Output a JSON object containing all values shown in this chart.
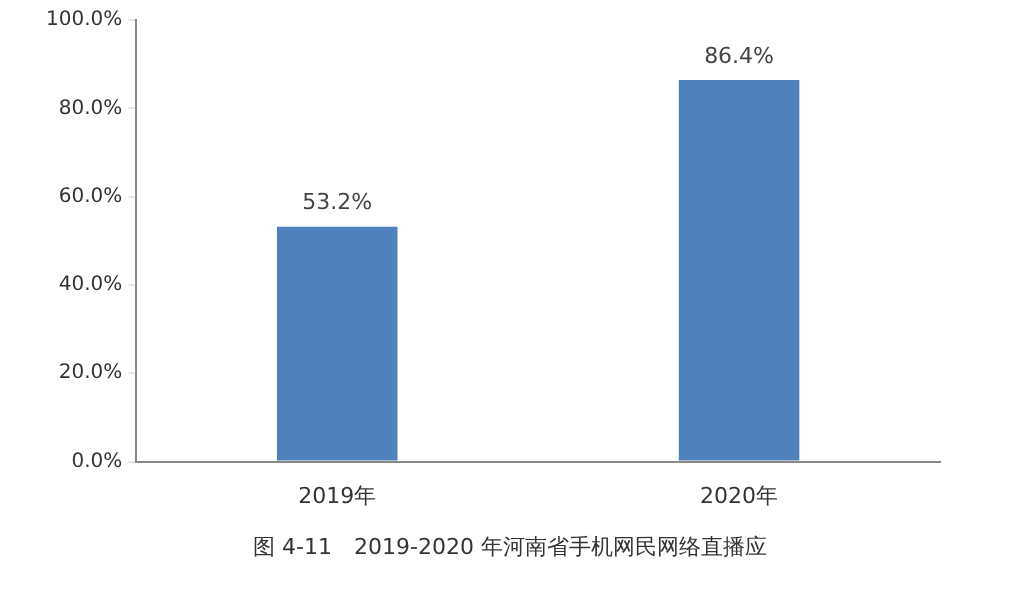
{
  "chart_data": {
    "type": "bar",
    "categories": [
      "2019年",
      "2020年"
    ],
    "values": [
      53.2,
      86.4
    ],
    "color": "#4f81bd",
    "ylim": [
      0,
      100
    ],
    "yticks": [
      {
        "value": 0,
        "label": "0.0%"
      },
      {
        "value": 20,
        "label": "20.0%"
      },
      {
        "value": 40,
        "label": "40.0%"
      },
      {
        "value": 60,
        "label": "60.0%"
      },
      {
        "value": 80,
        "label": "80.0%"
      },
      {
        "value": 100,
        "label": "100.0%"
      }
    ],
    "value_labels": [
      "53.2%",
      "86.4%"
    ],
    "grid": false,
    "legend": false,
    "annotations": [
      "图 4-11　2019-2020 年河南省手机网民网络直播应"
    ]
  }
}
